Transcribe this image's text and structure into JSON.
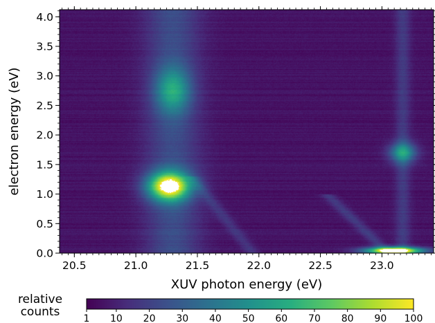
{
  "chart_data": {
    "type": "heatmap",
    "xlabel": "XUV photon energy (eV)",
    "ylabel": "electron energy (eV)",
    "xlim": [
      20.38,
      23.42
    ],
    "ylim": [
      0.0,
      4.12
    ],
    "x_ticks": [
      20.5,
      21.0,
      21.5,
      22.0,
      22.5,
      23.0
    ],
    "x_tick_labels": [
      "20.5",
      "21.0",
      "21.5",
      "22.0",
      "22.5",
      "23.0"
    ],
    "y_ticks": [
      0.0,
      0.5,
      1.0,
      1.5,
      2.0,
      2.5,
      3.0,
      3.5,
      4.0
    ],
    "y_tick_labels": [
      "0.0",
      "0.5",
      "1.0",
      "1.5",
      "2.0",
      "2.5",
      "3.0",
      "3.5",
      "4.0"
    ],
    "colorbar": {
      "title": [
        "relative",
        "counts"
      ],
      "ticks": [
        1,
        10,
        20,
        30,
        40,
        50,
        60,
        70,
        80,
        90,
        100
      ],
      "tick_labels": [
        "1",
        "10",
        "20",
        "30",
        "40",
        "50",
        "60",
        "70",
        "80",
        "90",
        "100"
      ],
      "range": [
        1,
        100
      ],
      "colormap": "viridis"
    },
    "background_level": 6,
    "features": [
      {
        "kind": "band",
        "center_x": 21.3,
        "width_x": 0.22,
        "level": 18
      },
      {
        "kind": "peak",
        "x": 21.27,
        "y": 1.13,
        "sx": 0.17,
        "sy": 0.24,
        "level": 95
      },
      {
        "kind": "peak",
        "x": 21.3,
        "y": 2.75,
        "sx": 0.14,
        "sy": 0.38,
        "level": 40
      },
      {
        "kind": "band",
        "center_x": 23.17,
        "width_x": 0.06,
        "level": 12
      },
      {
        "kind": "peak",
        "x": 23.17,
        "y": 1.7,
        "sx": 0.11,
        "sy": 0.17,
        "level": 45
      },
      {
        "kind": "peak",
        "x": 23.1,
        "y": 0.04,
        "sx": 0.22,
        "sy": 0.06,
        "level": 115
      },
      {
        "kind": "diagonal",
        "x0": 21.45,
        "y0": 1.3,
        "x1": 21.95,
        "y1": 0.0,
        "level": 10
      },
      {
        "kind": "diagonal",
        "x0": 22.55,
        "y0": 1.0,
        "x1": 23.05,
        "y1": 0.0,
        "level": 12
      }
    ]
  }
}
